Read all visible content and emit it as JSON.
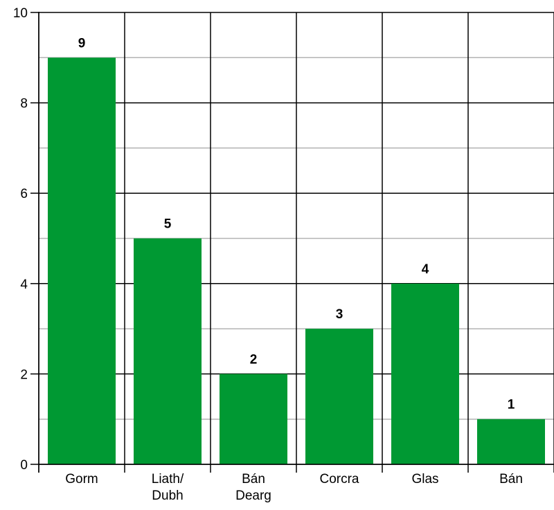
{
  "chart_data": {
    "type": "bar",
    "categories": [
      [
        "Gorm"
      ],
      [
        "Liath/",
        "Dubh"
      ],
      [
        "Bán",
        "Dearg"
      ],
      [
        "Corcra"
      ],
      [
        "Glas"
      ],
      [
        "Bán"
      ]
    ],
    "values": [
      9,
      5,
      2,
      3,
      4,
      1
    ],
    "data_labels": [
      "9",
      "5",
      "2",
      "3",
      "4",
      "1"
    ],
    "yticks": [
      0,
      2,
      4,
      6,
      8,
      10
    ],
    "ylim": [
      0,
      10
    ],
    "minor_gridlines": true,
    "grid": true,
    "bar_color": "#009933",
    "grid_color": "#000000",
    "minor_grid_color": "#b3b3b3"
  }
}
